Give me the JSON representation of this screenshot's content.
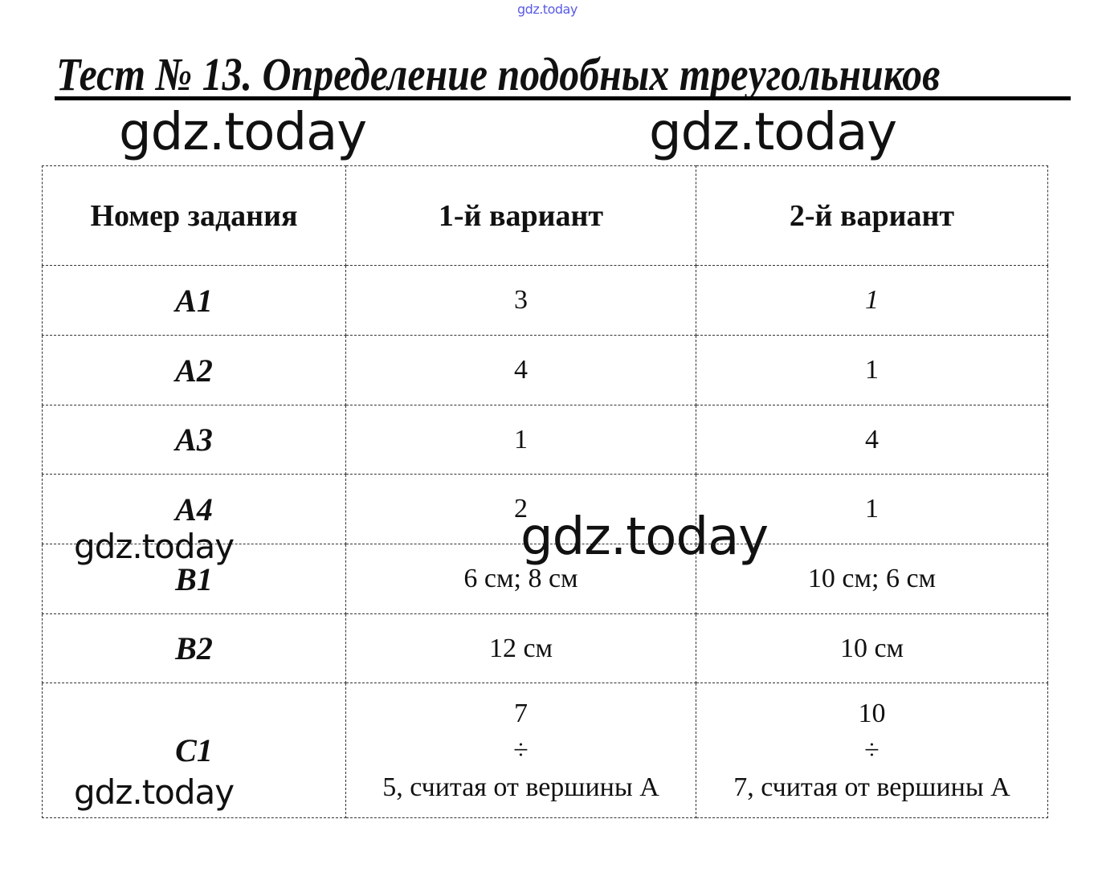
{
  "watermark_top": "gdz.today",
  "watermarks": [
    "gdz.today",
    "gdz.today",
    "gdz.today",
    "gdz.today",
    "gdz.today"
  ],
  "title": "Тест № 13. Определение подобных треугольников",
  "table": {
    "headers": [
      "Номер задания",
      "1-й вариант",
      "2-й вариант"
    ],
    "rows": [
      {
        "task": "A1",
        "v1": "3",
        "v2": "1"
      },
      {
        "task": "A2",
        "v1": "4",
        "v2": "1"
      },
      {
        "task": "A3",
        "v1": "1",
        "v2": "4"
      },
      {
        "task": "A4",
        "v1": "2",
        "v2": "1"
      },
      {
        "task": "B1",
        "v1": "6 см; 8 см",
        "v2": "10 см; 6 см"
      },
      {
        "task": "B2",
        "v1": "12 см",
        "v2": "10 см"
      }
    ],
    "c1": {
      "task": "C1",
      "v1": {
        "top": "7",
        "op": "÷",
        "bottom": "5, считая от вершины А"
      },
      "v2": {
        "top": "10",
        "op": "÷",
        "bottom": "7, считая от вершины А"
      }
    }
  }
}
